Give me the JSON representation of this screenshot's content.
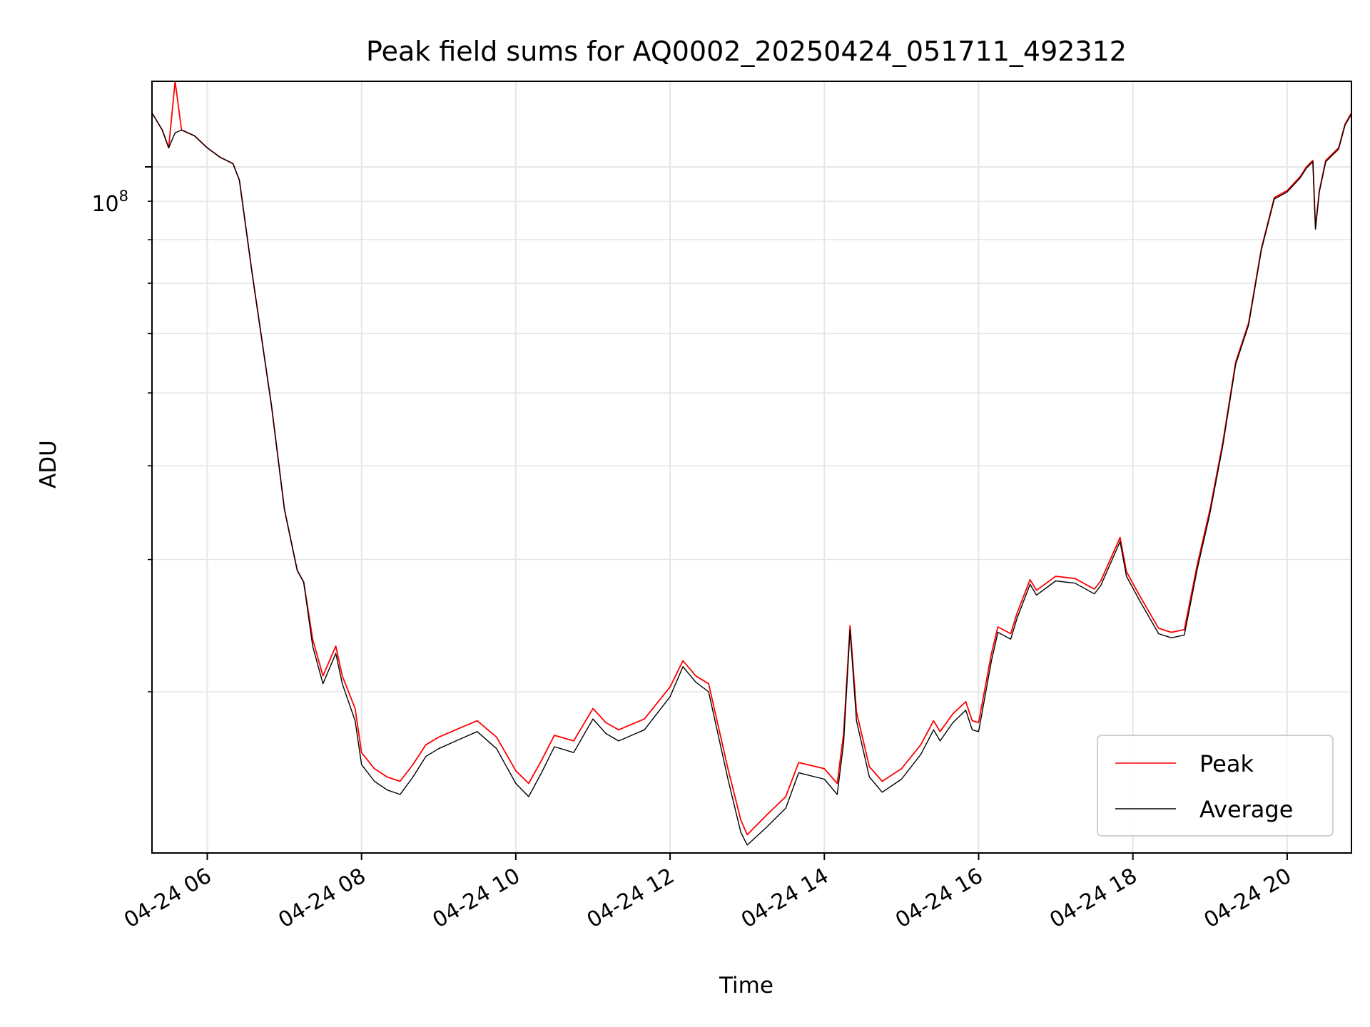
{
  "chart_data": {
    "type": "line",
    "title": "Peak field sums for AQ0002_20250424_051711_492312",
    "xlabel": "Time",
    "ylabel": "ADU",
    "y_scale": "log",
    "grid": true,
    "legend_placement": "bottom-right",
    "xlim": [
      "2025-04-24 05:17",
      "2025-04-24 20:50"
    ],
    "ylim": [
      12200000,
      130000000
    ],
    "x_ticks": [
      "04-24 06",
      "04-24 08",
      "04-24 10",
      "04-24 12",
      "04-24 14",
      "04-24 16",
      "04-24 18",
      "04-24 20"
    ],
    "x_tick_values": [
      "2025-04-24 06:00",
      "2025-04-24 08:00",
      "2025-04-24 10:00",
      "2025-04-24 12:00",
      "2025-04-24 14:00",
      "2025-04-24 16:00",
      "2025-04-24 18:00",
      "2025-04-24 20:00"
    ],
    "y_major_tick": {
      "value": 100000000,
      "label_base": "10",
      "label_exp": "8"
    },
    "y_minor_ticks": [
      20000000,
      30000000,
      40000000,
      50000000,
      60000000,
      70000000,
      80000000,
      90000000
    ],
    "x": [
      "2025-04-24 05:17",
      "2025-04-24 05:25",
      "2025-04-24 05:30",
      "2025-04-24 05:35",
      "2025-04-24 05:40",
      "2025-04-24 05:50",
      "2025-04-24 06:00",
      "2025-04-24 06:10",
      "2025-04-24 06:20",
      "2025-04-24 06:25",
      "2025-04-24 06:35",
      "2025-04-24 06:50",
      "2025-04-24 07:00",
      "2025-04-24 07:10",
      "2025-04-24 07:15",
      "2025-04-24 07:22",
      "2025-04-24 07:30",
      "2025-04-24 07:40",
      "2025-04-24 07:45",
      "2025-04-24 07:55",
      "2025-04-24 08:00",
      "2025-04-24 08:10",
      "2025-04-24 08:20",
      "2025-04-24 08:30",
      "2025-04-24 08:40",
      "2025-04-24 08:50",
      "2025-04-24 09:00",
      "2025-04-24 09:20",
      "2025-04-24 09:30",
      "2025-04-24 09:45",
      "2025-04-24 10:00",
      "2025-04-24 10:10",
      "2025-04-24 10:20",
      "2025-04-24 10:30",
      "2025-04-24 10:45",
      "2025-04-24 11:00",
      "2025-04-24 11:10",
      "2025-04-24 11:20",
      "2025-04-24 11:40",
      "2025-04-24 12:00",
      "2025-04-24 12:10",
      "2025-04-24 12:20",
      "2025-04-24 12:30",
      "2025-04-24 12:45",
      "2025-04-24 12:55",
      "2025-04-24 13:00",
      "2025-04-24 13:15",
      "2025-04-24 13:30",
      "2025-04-24 13:40",
      "2025-04-24 14:00",
      "2025-04-24 14:10",
      "2025-04-24 14:15",
      "2025-04-24 14:20",
      "2025-04-24 14:25",
      "2025-04-24 14:35",
      "2025-04-24 14:45",
      "2025-04-24 15:00",
      "2025-04-24 15:15",
      "2025-04-24 15:25",
      "2025-04-24 15:30",
      "2025-04-24 15:40",
      "2025-04-24 15:50",
      "2025-04-24 15:55",
      "2025-04-24 16:00",
      "2025-04-24 16:10",
      "2025-04-24 16:15",
      "2025-04-24 16:25",
      "2025-04-24 16:30",
      "2025-04-24 16:40",
      "2025-04-24 16:45",
      "2025-04-24 17:00",
      "2025-04-24 17:15",
      "2025-04-24 17:30",
      "2025-04-24 17:35",
      "2025-04-24 17:45",
      "2025-04-24 17:50",
      "2025-04-24 17:55",
      "2025-04-24 18:05",
      "2025-04-24 18:20",
      "2025-04-24 18:30",
      "2025-04-24 18:40",
      "2025-04-24 18:50",
      "2025-04-24 19:00",
      "2025-04-24 19:10",
      "2025-04-24 19:20",
      "2025-04-24 19:30",
      "2025-04-24 19:40",
      "2025-04-24 19:50",
      "2025-04-24 20:00",
      "2025-04-24 20:10",
      "2025-04-24 20:15",
      "2025-04-24 20:20",
      "2025-04-24 20:22",
      "2025-04-24 20:25",
      "2025-04-24 20:30",
      "2025-04-24 20:40",
      "2025-04-24 20:45",
      "2025-04-24 20:50"
    ],
    "series": [
      {
        "name": "Peak",
        "color": "#ff0000",
        "values": [
          118000000,
          112000000,
          106000000,
          130000000,
          112000000,
          110000000,
          106000000,
          103000000,
          101000000,
          96000000,
          72000000,
          48000000,
          35000000,
          29000000,
          28000000,
          23500000,
          21000000,
          23000000,
          21000000,
          19000000,
          16600000,
          15800000,
          15400000,
          15200000,
          16000000,
          17000000,
          17400000,
          18000000,
          18300000,
          17400000,
          15700000,
          15100000,
          16200000,
          17500000,
          17200000,
          19000000,
          18200000,
          17800000,
          18400000,
          20300000,
          22000000,
          21000000,
          20500000,
          15800000,
          13500000,
          12900000,
          13700000,
          14500000,
          16100000,
          15800000,
          15100000,
          17600000,
          24500000,
          18800000,
          15900000,
          15200000,
          15800000,
          17000000,
          18300000,
          17700000,
          18700000,
          19400000,
          18300000,
          18200000,
          22500000,
          24400000,
          23900000,
          25500000,
          28200000,
          27300000,
          28500000,
          28300000,
          27400000,
          28100000,
          30700000,
          32100000,
          28900000,
          26900000,
          24300000,
          24000000,
          24200000,
          29500000,
          35000000,
          43000000,
          55000000,
          62000000,
          78000000,
          91000000,
          93000000,
          97000000,
          100000000,
          102000000,
          83000000,
          93000000,
          102000000,
          106000000,
          114000000,
          118000000
        ]
      },
      {
        "name": "Average",
        "color": "#000000",
        "values": [
          118000000,
          112000000,
          106000000,
          111000000,
          112000000,
          110000000,
          106000000,
          103000000,
          101000000,
          96000000,
          72000000,
          48000000,
          35000000,
          29000000,
          28000000,
          23000000,
          20500000,
          22500000,
          20500000,
          18300000,
          16000000,
          15200000,
          14800000,
          14600000,
          15400000,
          16400000,
          16800000,
          17400000,
          17700000,
          16800000,
          15100000,
          14500000,
          15600000,
          16900000,
          16600000,
          18400000,
          17600000,
          17200000,
          17800000,
          19700000,
          21600000,
          20600000,
          20000000,
          15300000,
          13000000,
          12500000,
          13200000,
          14000000,
          15600000,
          15300000,
          14600000,
          17100000,
          24200000,
          18300000,
          15400000,
          14700000,
          15300000,
          16500000,
          17800000,
          17200000,
          18200000,
          18900000,
          17800000,
          17700000,
          22000000,
          24000000,
          23500000,
          25100000,
          27800000,
          26900000,
          28100000,
          27900000,
          27000000,
          27700000,
          30300000,
          31700000,
          28500000,
          26500000,
          23900000,
          23600000,
          23800000,
          29100000,
          34600000,
          42600000,
          54600000,
          61600000,
          77600000,
          90600000,
          92600000,
          96600000,
          99600000,
          101600000,
          82600000,
          92600000,
          101600000,
          105600000,
          113600000,
          117600000
        ]
      }
    ]
  }
}
